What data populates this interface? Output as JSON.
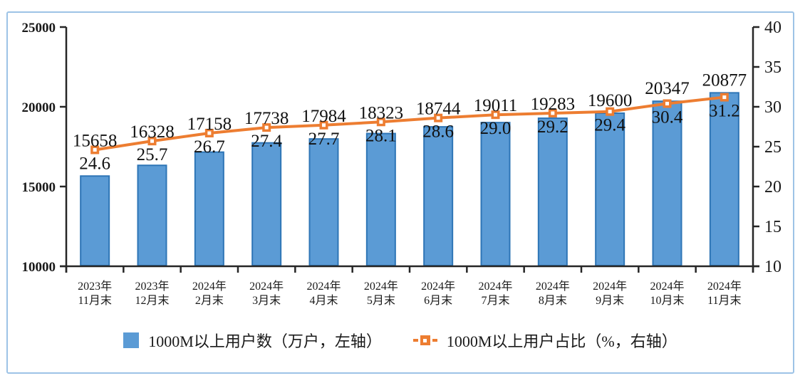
{
  "chart_data": {
    "type": "bar",
    "subtype": "bar-line-combo",
    "title": "",
    "categories": [
      [
        "2023年",
        "11月末"
      ],
      [
        "2023年",
        "12月末"
      ],
      [
        "2024年",
        "2月末"
      ],
      [
        "2024年",
        "3月末"
      ],
      [
        "2024年",
        "4月末"
      ],
      [
        "2024年",
        "5月末"
      ],
      [
        "2024年",
        "6月末"
      ],
      [
        "2024年",
        "7月末"
      ],
      [
        "2024年",
        "8月末"
      ],
      [
        "2024年",
        "9月末"
      ],
      [
        "2024年",
        "10月末"
      ],
      [
        "2024年",
        "11月末"
      ]
    ],
    "series": [
      {
        "name": "1000M以上用户数（万户，左轴）",
        "type": "bar",
        "axis": "left",
        "values": [
          15658,
          16328,
          17158,
          17738,
          17984,
          18323,
          18744,
          19011,
          19283,
          19600,
          20347,
          20877
        ],
        "fill_color": "#5B9BD5",
        "border_color": "#2E75B6"
      },
      {
        "name": "1000M以上用户占比（%，右轴）",
        "type": "line",
        "axis": "right",
        "values": [
          24.6,
          25.7,
          26.7,
          27.4,
          27.7,
          28.1,
          28.6,
          29.0,
          29.2,
          29.4,
          30.4,
          31.2
        ],
        "line_color": "#ED7D31",
        "marker": "square-with-white-dot"
      }
    ],
    "left_axis": {
      "min": 10000,
      "max": 25000,
      "ticks": [
        10000,
        15000,
        20000,
        25000
      ]
    },
    "right_axis": {
      "min": 10,
      "max": 40,
      "ticks": [
        10,
        15,
        20,
        25,
        30,
        35,
        40
      ]
    },
    "grid": false,
    "legend_position": "bottom",
    "data_labels": true
  },
  "legend": {
    "bar_label": "1000M以上用户数（万户，左轴）",
    "line_label": "1000M以上用户占比（%，右轴）"
  },
  "colors": {
    "bar_fill": "#5B9BD5",
    "bar_border": "#2E75B6",
    "line": "#ED7D31",
    "frame_border": "#9DC3E6",
    "axis": "#262626",
    "text": "#1a1a1a"
  }
}
